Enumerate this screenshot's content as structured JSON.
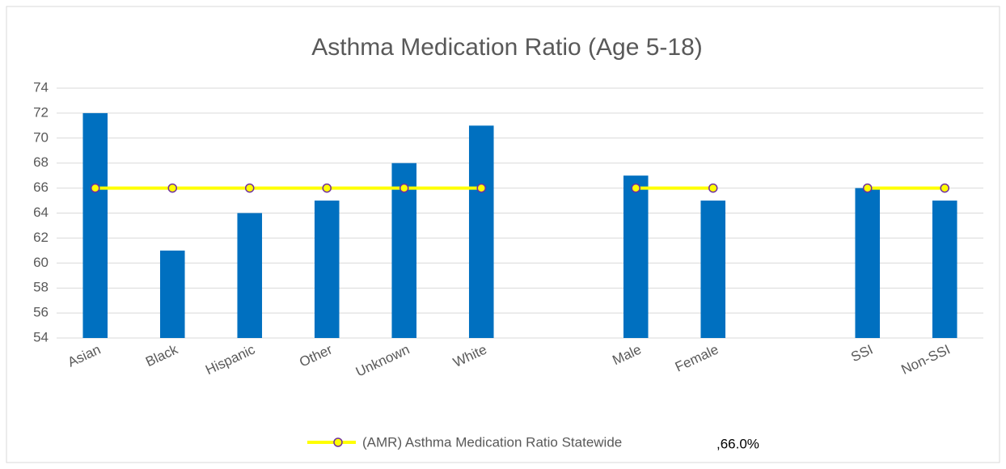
{
  "chart_data": {
    "type": "bar",
    "title": "Asthma Medication Ratio (Age 5-18)",
    "categories": [
      "Asian",
      "Black",
      "Hispanic",
      "Other",
      "Unknown",
      "White",
      null,
      "Male",
      "Female",
      null,
      "SSI",
      "Non-SSI"
    ],
    "series": [
      {
        "type": "bar",
        "color": "#0070c0",
        "values": [
          72,
          61,
          64,
          65,
          68,
          71,
          null,
          67,
          65,
          null,
          66,
          65
        ]
      },
      {
        "type": "line",
        "name": "(AMR) Asthma Medication Ratio Statewide",
        "color": "#ffff00",
        "marker_edge_color": "#7030a0",
        "values": [
          66,
          66,
          66,
          66,
          66,
          66,
          null,
          66,
          66,
          null,
          66,
          66
        ]
      }
    ],
    "legend_note": ",66.0%",
    "ylim": [
      54,
      74
    ],
    "yticks": [
      54,
      56,
      58,
      60,
      62,
      64,
      66,
      68,
      70,
      72,
      74
    ],
    "grid": true,
    "legend": "bottom"
  }
}
